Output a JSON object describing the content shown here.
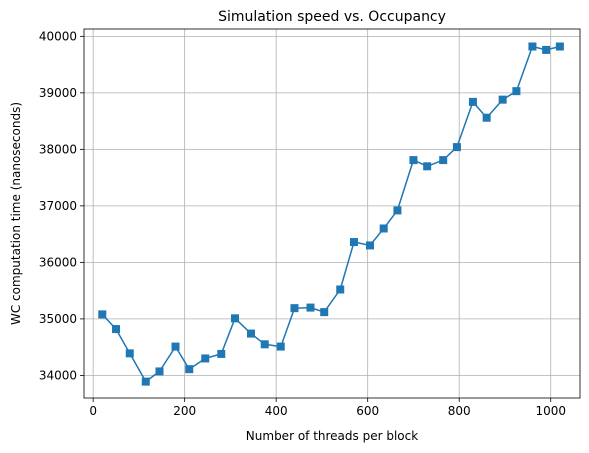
{
  "chart_data": {
    "type": "line",
    "title": "Simulation speed vs. Occupancy",
    "xlabel": "Number of threads per block",
    "ylabel": "WC computation time (nanoseconds)",
    "xlim": [
      -20,
      1064
    ],
    "ylim": [
      33600,
      40130
    ],
    "xticks": [
      0,
      200,
      400,
      600,
      800,
      1000
    ],
    "yticks": [
      34000,
      35000,
      36000,
      37000,
      38000,
      39000,
      40000
    ],
    "grid": true,
    "series_color": "#1f77b4",
    "marker": "square",
    "x": [
      20,
      50,
      80,
      115,
      145,
      180,
      210,
      245,
      280,
      310,
      345,
      375,
      410,
      440,
      475,
      505,
      540,
      570,
      605,
      635,
      665,
      700,
      730,
      765,
      795,
      830,
      860,
      895,
      925,
      960,
      990,
      1020
    ],
    "y": [
      35080,
      34820,
      34390,
      33890,
      34070,
      34510,
      34110,
      34300,
      34380,
      35010,
      34740,
      34550,
      34510,
      35190,
      35200,
      35120,
      35520,
      36360,
      36300,
      36600,
      36920,
      37810,
      37700,
      37810,
      38040,
      38840,
      38560,
      38880,
      39030,
      39820,
      39760,
      39820
    ]
  }
}
